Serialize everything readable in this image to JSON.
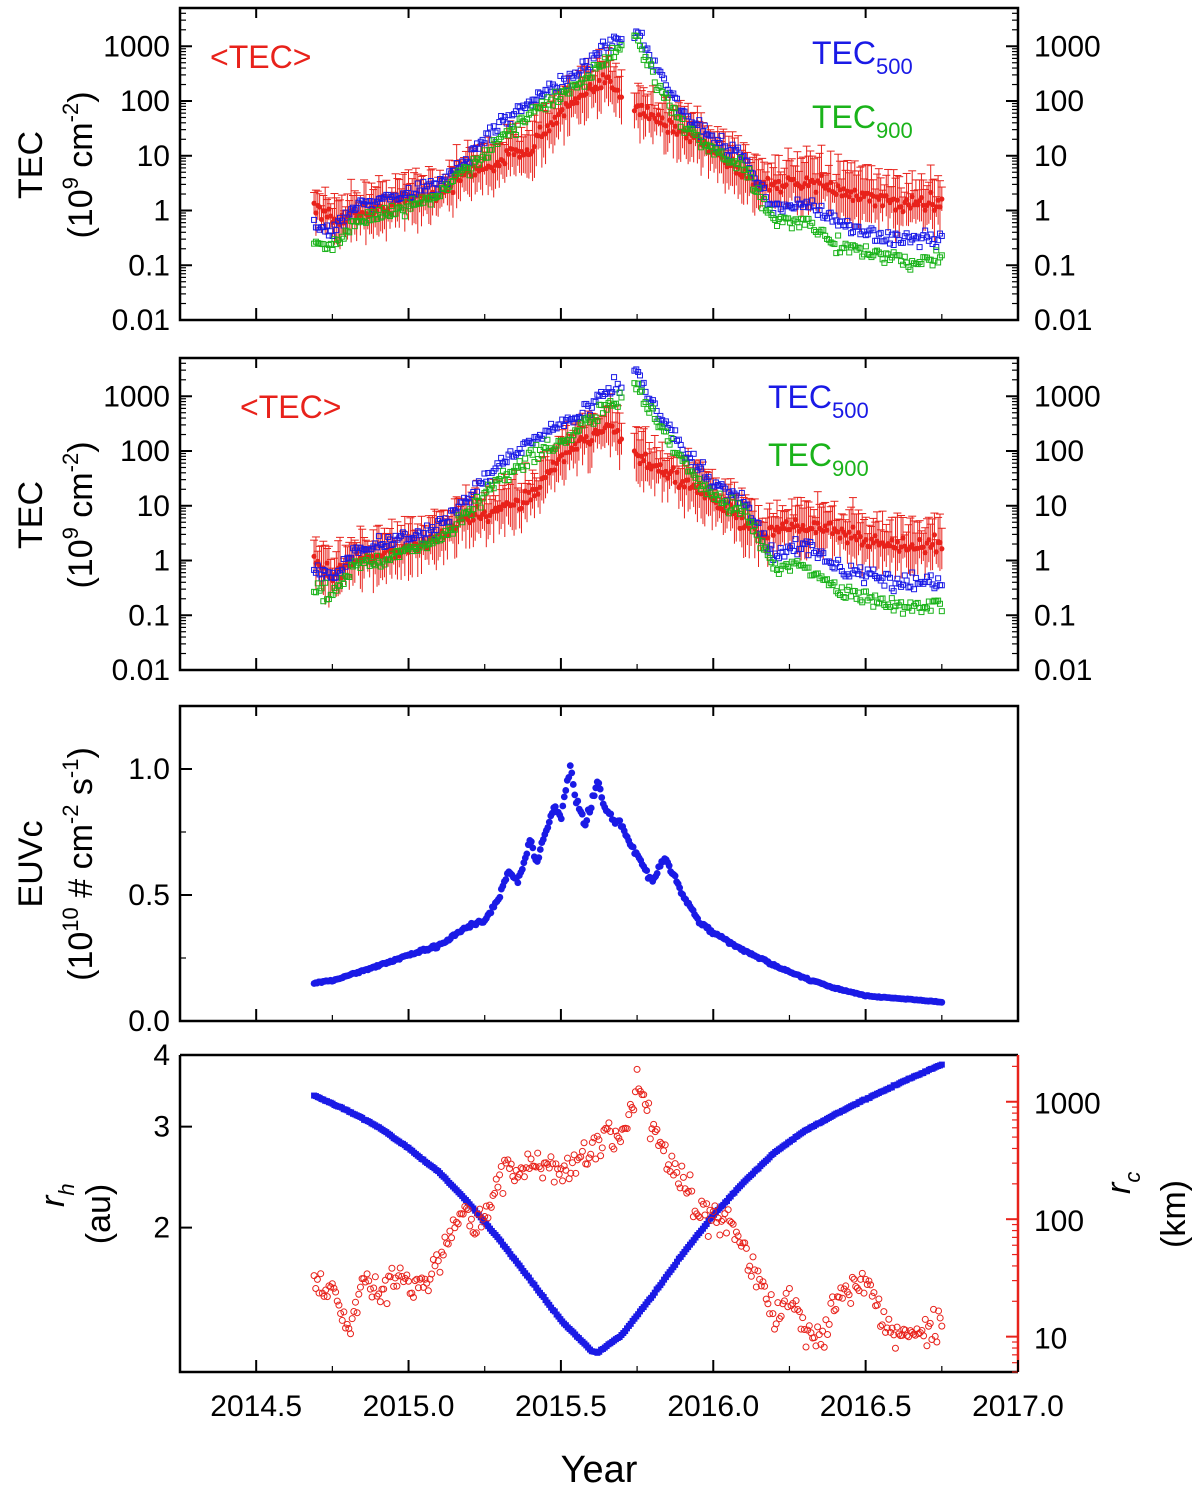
{
  "colors": {
    "red": "#e8221b",
    "blue": "#1a1ae6",
    "green": "#1ab31a",
    "axis_red": "#e8221b",
    "black": "#000000"
  },
  "chart_data": [
    {
      "type": "scatter",
      "id": "tec_top",
      "yscale": "log",
      "ylim": [
        0.01,
        5000
      ],
      "xlim": [
        2014.25,
        2017.0
      ],
      "ylabel_line1": "TEC",
      "ylabel_line2": "(10",
      "ylabel_sup": "9",
      "ylabel_tail": " cm",
      "ylabel_sup2": "-2",
      "ylabel_end": ")",
      "yticks": [
        0.01,
        0.1,
        1,
        10,
        100,
        1000
      ],
      "ytick_labels": [
        "0.01",
        "0.1",
        "1",
        "10",
        "100",
        "1000"
      ],
      "legend": {
        "mean_label": "<TEC>",
        "s500_main": "TEC",
        "s500_sub": "500",
        "s900_main": "TEC",
        "s900_sub": "900"
      },
      "series": [
        {
          "name": "<TEC>",
          "style": "red-errorbar",
          "x": [
            2014.69,
            2014.75,
            2014.82,
            2014.9,
            2015.0,
            2015.1,
            2015.2,
            2015.3,
            2015.4,
            2015.5,
            2015.6,
            2015.65,
            2015.75,
            2015.85,
            2015.95,
            2016.05,
            2016.15,
            2016.25,
            2016.35,
            2016.45,
            2016.55,
            2016.65,
            2016.75
          ],
          "y": [
            1.2,
            0.6,
            0.9,
            1.0,
            1.6,
            2.0,
            5.0,
            8.0,
            15,
            60,
            150,
            250,
            80,
            35,
            20,
            8,
            3,
            3,
            3,
            2,
            1.5,
            1.3,
            1.5
          ]
        },
        {
          "name": "TEC500",
          "style": "blue-square",
          "x": [
            2014.69,
            2014.75,
            2014.82,
            2014.9,
            2015.0,
            2015.1,
            2015.2,
            2015.3,
            2015.4,
            2015.5,
            2015.6,
            2015.67,
            2015.75,
            2015.82,
            2015.9,
            2016.0,
            2016.1,
            2016.2,
            2016.3,
            2016.4,
            2016.5,
            2016.6,
            2016.7,
            2016.75
          ],
          "y": [
            0.6,
            0.4,
            1.2,
            1.5,
            2.0,
            3.0,
            10,
            40,
            100,
            200,
            500,
            1200,
            2000,
            350,
            60,
            20,
            10,
            1.0,
            1.5,
            0.6,
            0.4,
            0.3,
            0.3,
            0.3
          ]
        },
        {
          "name": "TEC900",
          "style": "green-square",
          "x": [
            2014.69,
            2014.75,
            2014.82,
            2014.9,
            2015.0,
            2015.1,
            2015.2,
            2015.3,
            2015.4,
            2015.5,
            2015.6,
            2015.67,
            2015.75,
            2015.82,
            2015.9,
            2016.0,
            2016.1,
            2016.2,
            2016.3,
            2016.4,
            2016.5,
            2016.6,
            2016.7,
            2016.75
          ],
          "y": [
            0.3,
            0.2,
            0.6,
            0.8,
            1.2,
            2.0,
            6,
            20,
            60,
            120,
            300,
            700,
            1200,
            200,
            40,
            12,
            6,
            0.6,
            0.6,
            0.25,
            0.18,
            0.12,
            0.12,
            0.12
          ]
        }
      ]
    },
    {
      "type": "scatter",
      "id": "tec_mid",
      "yscale": "log",
      "ylim": [
        0.01,
        5000
      ],
      "xlim": [
        2014.25,
        2017.0
      ],
      "ylabel_line1": "TEC",
      "ylabel_line2": "(10",
      "ylabel_sup": "9",
      "ylabel_tail": " cm",
      "ylabel_sup2": "-2",
      "ylabel_end": ")",
      "yticks": [
        0.01,
        0.1,
        1,
        10,
        100,
        1000
      ],
      "ytick_labels": [
        "0.01",
        "0.1",
        "1",
        "10",
        "100",
        "1000"
      ],
      "legend": {
        "mean_label": "<TEC>",
        "s500_main": "TEC",
        "s500_sub": "500",
        "s900_main": "TEC",
        "s900_sub": "900"
      },
      "series": [
        {
          "name": "<TEC>",
          "style": "red-errorbar",
          "x": [
            2014.69,
            2014.75,
            2014.82,
            2014.9,
            2015.0,
            2015.1,
            2015.2,
            2015.3,
            2015.4,
            2015.5,
            2015.6,
            2015.65,
            2015.75,
            2015.85,
            2015.95,
            2016.05,
            2016.15,
            2016.25,
            2016.35,
            2016.45,
            2016.55,
            2016.65,
            2016.75
          ],
          "y": [
            1.0,
            0.5,
            1.0,
            1.2,
            1.6,
            2.5,
            6,
            8,
            15,
            80,
            200,
            300,
            80,
            40,
            20,
            8,
            3,
            4,
            4,
            3,
            2,
            1.8,
            2.0
          ]
        },
        {
          "name": "TEC500",
          "style": "blue-square",
          "x": [
            2014.69,
            2014.75,
            2014.82,
            2014.9,
            2015.0,
            2015.1,
            2015.2,
            2015.3,
            2015.4,
            2015.5,
            2015.6,
            2015.67,
            2015.75,
            2015.82,
            2015.9,
            2016.0,
            2016.1,
            2016.2,
            2016.3,
            2016.4,
            2016.5,
            2016.6,
            2016.7,
            2016.75
          ],
          "y": [
            0.6,
            0.5,
            1.5,
            2.0,
            2.5,
            4.0,
            15,
            60,
            150,
            300,
            700,
            1500,
            2500,
            500,
            100,
            25,
            12,
            1.2,
            2.0,
            0.8,
            0.5,
            0.4,
            0.4,
            0.4
          ]
        },
        {
          "name": "TEC900",
          "style": "green-square",
          "x": [
            2014.69,
            2014.75,
            2014.82,
            2014.9,
            2015.0,
            2015.1,
            2015.2,
            2015.3,
            2015.4,
            2015.5,
            2015.6,
            2015.67,
            2015.75,
            2015.82,
            2015.9,
            2016.0,
            2016.1,
            2016.2,
            2016.3,
            2016.4,
            2016.5,
            2016.6,
            2016.7,
            2016.75
          ],
          "y": [
            0.3,
            0.25,
            0.8,
            1.0,
            1.5,
            2.5,
            8,
            30,
            80,
            150,
            400,
            800,
            1500,
            300,
            60,
            15,
            8,
            0.8,
            0.8,
            0.3,
            0.2,
            0.15,
            0.15,
            0.15
          ]
        }
      ]
    },
    {
      "type": "scatter",
      "id": "euvc",
      "yscale": "linear",
      "ylim": [
        0.0,
        1.25
      ],
      "xlim": [
        2014.25,
        2017.0
      ],
      "ylabel_line1": "EUVc",
      "ylabel_line2": "(10",
      "ylabel_sup": "10",
      "ylabel_tail": " # cm",
      "ylabel_sup2": "-2",
      "ylabel_tail2": " s",
      "ylabel_sup3": "-1",
      "ylabel_end": ")",
      "yticks": [
        0.0,
        0.5,
        1.0
      ],
      "ytick_labels": [
        "0.0",
        "0.5",
        "1.0"
      ],
      "series": [
        {
          "name": "EUVc",
          "style": "blue-dot",
          "x": [
            2014.69,
            2014.75,
            2014.8,
            2014.9,
            2015.0,
            2015.05,
            2015.1,
            2015.15,
            2015.2,
            2015.25,
            2015.3,
            2015.33,
            2015.36,
            2015.4,
            2015.42,
            2015.45,
            2015.48,
            2015.5,
            2015.53,
            2015.55,
            2015.58,
            2015.62,
            2015.65,
            2015.7,
            2015.73,
            2015.77,
            2015.8,
            2015.84,
            2015.9,
            2015.95,
            2016.0,
            2016.1,
            2016.2,
            2016.3,
            2016.4,
            2016.5,
            2016.6,
            2016.7,
            2016.75
          ],
          "y": [
            0.15,
            0.16,
            0.18,
            0.22,
            0.26,
            0.28,
            0.3,
            0.34,
            0.38,
            0.4,
            0.5,
            0.6,
            0.55,
            0.72,
            0.62,
            0.75,
            0.85,
            0.8,
            1.02,
            0.88,
            0.78,
            0.95,
            0.82,
            0.78,
            0.7,
            0.62,
            0.55,
            0.65,
            0.5,
            0.4,
            0.35,
            0.28,
            0.22,
            0.17,
            0.13,
            0.1,
            0.09,
            0.08,
            0.075
          ]
        }
      ]
    },
    {
      "type": "scatter",
      "id": "geometry",
      "yscale": "log",
      "ylim": [
        1.12,
        4.0
      ],
      "xlim": [
        2014.25,
        2017.0
      ],
      "ylabel_main": "r",
      "ylabel_sub": "h",
      "ylabel_unit": "(au)",
      "yticks": [
        2,
        3,
        4
      ],
      "ytick_labels": [
        "2",
        "3",
        "4"
      ],
      "right_axis": {
        "yscale": "log",
        "ylim": [
          5,
          2500
        ],
        "yticks": [
          10,
          100,
          1000
        ],
        "ytick_labels": [
          "10",
          "100",
          "1000"
        ],
        "label_main": "r",
        "label_sub": "c",
        "label_unit": "(km)"
      },
      "xticks": [
        2014.5,
        2015.0,
        2015.5,
        2016.0,
        2016.5,
        2017.0
      ],
      "xtick_labels": [
        "2014.5",
        "2015.0",
        "2015.5",
        "2016.0",
        "2016.5",
        "2017.0"
      ],
      "xlabel": "Year",
      "series": [
        {
          "name": "r_h",
          "axis": "left",
          "style": "blue-square",
          "x": [
            2014.69,
            2014.8,
            2014.9,
            2015.0,
            2015.1,
            2015.2,
            2015.3,
            2015.4,
            2015.5,
            2015.6,
            2015.62,
            2015.7,
            2015.8,
            2015.9,
            2016.0,
            2016.1,
            2016.2,
            2016.3,
            2016.4,
            2016.5,
            2016.6,
            2016.7,
            2016.75
          ],
          "y": [
            3.4,
            3.2,
            3.0,
            2.75,
            2.5,
            2.2,
            1.9,
            1.62,
            1.38,
            1.22,
            1.21,
            1.3,
            1.52,
            1.8,
            2.1,
            2.4,
            2.7,
            2.95,
            3.15,
            3.35,
            3.55,
            3.75,
            3.85
          ]
        },
        {
          "name": "r_c",
          "axis": "right",
          "style": "red-circle",
          "x": [
            2014.69,
            2014.75,
            2014.8,
            2014.85,
            2014.9,
            2015.0,
            2015.05,
            2015.1,
            2015.15,
            2015.2,
            2015.25,
            2015.3,
            2015.35,
            2015.4,
            2015.45,
            2015.5,
            2015.55,
            2015.6,
            2015.65,
            2015.7,
            2015.75,
            2015.8,
            2015.85,
            2015.9,
            2015.95,
            2016.0,
            2016.05,
            2016.1,
            2016.15,
            2016.2,
            2016.25,
            2016.3,
            2016.35,
            2016.4,
            2016.45,
            2016.5,
            2016.55,
            2016.6,
            2016.65,
            2016.7,
            2016.75
          ],
          "y": [
            30,
            25,
            10,
            30,
            25,
            30,
            30,
            40,
            80,
            100,
            100,
            200,
            250,
            320,
            280,
            250,
            300,
            400,
            500,
            500,
            1500,
            600,
            300,
            200,
            130,
            100,
            90,
            60,
            30,
            15,
            25,
            12,
            8,
            20,
            25,
            30,
            15,
            10,
            12,
            10,
            15
          ]
        }
      ]
    }
  ]
}
